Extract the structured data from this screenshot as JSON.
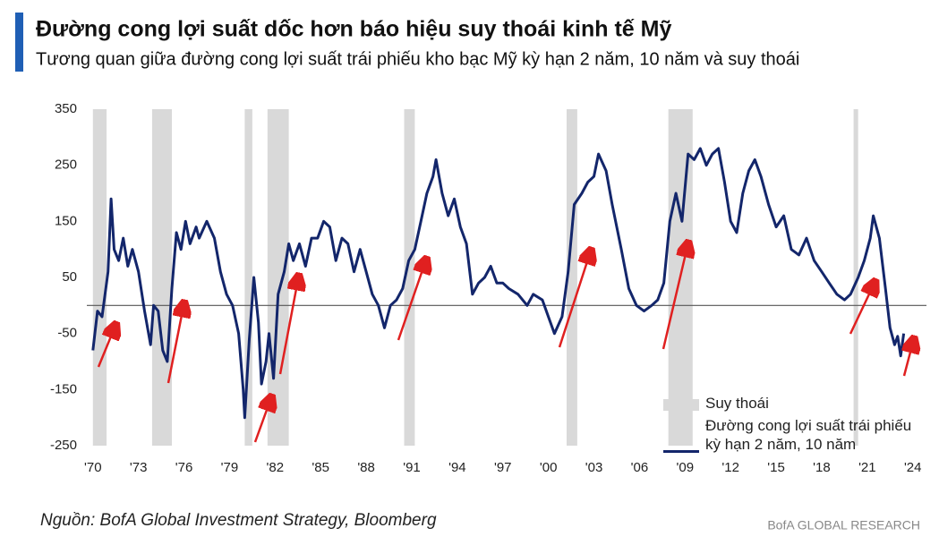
{
  "chart_data": {
    "type": "line",
    "title": "Đường cong lợi suất dốc hơn báo hiệu suy thoái kinh tế Mỹ",
    "subtitle": "Tương quan giữa đường cong lợi suất trái phiếu kho bạc Mỹ kỳ hạn 2 năm, 10 năm và suy thoái",
    "source": "Nguồn: BofA Global Investment Strategy, Bloomberg",
    "brand": "BofA GLOBAL RESEARCH",
    "xlim": [
      1969.6,
      2024.9
    ],
    "ylim": [
      -250,
      350
    ],
    "yticks": [
      350,
      250,
      150,
      50,
      -50,
      -150,
      -250
    ],
    "xticks": [
      {
        "value": 1970,
        "label": "'70"
      },
      {
        "value": 1973,
        "label": "'73"
      },
      {
        "value": 1976,
        "label": "'76"
      },
      {
        "value": 1979,
        "label": "'79"
      },
      {
        "value": 1982,
        "label": "'82"
      },
      {
        "value": 1985,
        "label": "'85"
      },
      {
        "value": 1988,
        "label": "'88"
      },
      {
        "value": 1991,
        "label": "'91"
      },
      {
        "value": 1994,
        "label": "'94"
      },
      {
        "value": 1997,
        "label": "'97"
      },
      {
        "value": 2000,
        "label": "'00"
      },
      {
        "value": 2003,
        "label": "'03"
      },
      {
        "value": 2006,
        "label": "'06"
      },
      {
        "value": 2009,
        "label": "'09"
      },
      {
        "value": 2012,
        "label": "'12"
      },
      {
        "value": 2015,
        "label": "'15"
      },
      {
        "value": 2018,
        "label": "'18"
      },
      {
        "value": 2021,
        "label": "'21"
      },
      {
        "value": 2024,
        "label": "'24"
      }
    ],
    "hline": 0,
    "recession_bands": {
      "name": "Suy thoái",
      "color": "#d9d9d9",
      "ranges": [
        [
          1970.0,
          1970.9
        ],
        [
          1973.9,
          1975.2
        ],
        [
          1980.0,
          1980.5
        ],
        [
          1981.5,
          1982.9
        ],
        [
          1990.5,
          1991.2
        ],
        [
          2001.2,
          2001.9
        ],
        [
          2007.9,
          2009.5
        ],
        [
          2020.1,
          2020.4
        ]
      ]
    },
    "series": [
      {
        "name": "Đường cong lợi suất trái phiếu kỳ hạn 2 năm, 10 năm",
        "color": "#13266b",
        "x": [
          1970.0,
          1970.3,
          1970.6,
          1971.0,
          1971.2,
          1971.4,
          1971.7,
          1972.0,
          1972.3,
          1972.6,
          1973.0,
          1973.4,
          1973.8,
          1974.0,
          1974.3,
          1974.6,
          1974.9,
          1975.2,
          1975.5,
          1975.8,
          1976.1,
          1976.4,
          1976.8,
          1977.0,
          1977.5,
          1978.0,
          1978.4,
          1978.8,
          1979.2,
          1979.6,
          1979.9,
          1980.0,
          1980.3,
          1980.6,
          1980.9,
          1981.1,
          1981.4,
          1981.6,
          1981.9,
          1982.2,
          1982.6,
          1982.9,
          1983.2,
          1983.6,
          1984.0,
          1984.4,
          1984.8,
          1985.2,
          1985.6,
          1986.0,
          1986.4,
          1986.8,
          1987.2,
          1987.6,
          1988.0,
          1988.4,
          1988.8,
          1989.2,
          1989.6,
          1990.0,
          1990.4,
          1990.8,
          1991.2,
          1991.6,
          1992.0,
          1992.4,
          1992.6,
          1993.0,
          1993.4,
          1993.8,
          1994.2,
          1994.6,
          1995.0,
          1995.4,
          1995.8,
          1996.2,
          1996.6,
          1997.0,
          1997.4,
          1998.0,
          1998.6,
          1999.0,
          1999.6,
          2000.0,
          2000.4,
          2000.9,
          2001.3,
          2001.7,
          2002.2,
          2002.6,
          2003.0,
          2003.3,
          2003.8,
          2004.2,
          2004.8,
          2005.3,
          2005.8,
          2006.3,
          2006.8,
          2007.2,
          2007.6,
          2008.0,
          2008.4,
          2008.8,
          2009.2,
          2009.6,
          2010.0,
          2010.4,
          2010.8,
          2011.2,
          2011.6,
          2012.0,
          2012.4,
          2012.8,
          2013.2,
          2013.6,
          2014.0,
          2014.5,
          2015.0,
          2015.5,
          2016.0,
          2016.5,
          2017.0,
          2017.5,
          2018.0,
          2018.5,
          2019.0,
          2019.5,
          2019.9,
          2020.4,
          2020.8,
          2021.2,
          2021.4,
          2021.8,
          2022.2,
          2022.5,
          2022.8,
          2023.0,
          2023.2,
          2023.4
        ],
        "values": [
          -80,
          -10,
          -20,
          60,
          190,
          100,
          80,
          120,
          70,
          100,
          60,
          -10,
          -70,
          0,
          -10,
          -80,
          -100,
          30,
          130,
          100,
          150,
          110,
          140,
          120,
          150,
          120,
          60,
          20,
          0,
          -50,
          -150,
          -200,
          -60,
          50,
          -30,
          -140,
          -100,
          -50,
          -130,
          20,
          60,
          110,
          80,
          110,
          70,
          120,
          120,
          150,
          140,
          80,
          120,
          110,
          60,
          100,
          60,
          20,
          0,
          -40,
          0,
          10,
          30,
          80,
          100,
          150,
          200,
          230,
          260,
          200,
          160,
          190,
          140,
          110,
          20,
          40,
          50,
          70,
          40,
          40,
          30,
          20,
          0,
          20,
          10,
          -20,
          -50,
          -20,
          60,
          180,
          200,
          220,
          230,
          270,
          240,
          180,
          100,
          30,
          0,
          -10,
          0,
          10,
          40,
          150,
          200,
          150,
          270,
          260,
          280,
          250,
          270,
          280,
          220,
          150,
          130,
          200,
          240,
          260,
          230,
          180,
          140,
          160,
          100,
          90,
          120,
          80,
          60,
          40,
          20,
          10,
          20,
          50,
          80,
          120,
          160,
          120,
          30,
          -40,
          -70,
          -55,
          -90,
          -50
        ]
      }
    ]
  }
}
